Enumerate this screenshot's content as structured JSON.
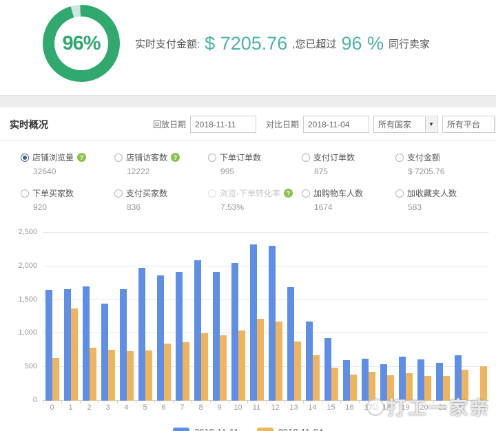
{
  "summary": {
    "donut_label": "96%",
    "donut_percent": 96,
    "prefix": "实时支付金额:",
    "amount": "$ 7205.76",
    "middle": ",您已超过",
    "percent": "96 %",
    "suffix": "同行卖家"
  },
  "overview": {
    "title": "实时概况"
  },
  "filters": {
    "replay_label": "回放日期",
    "replay_value": "2018-11-11",
    "compare_label": "对比日期",
    "compare_value": "2018-11-04",
    "country_selected": "所有国家",
    "platform_selected": "所有平台"
  },
  "metrics": {
    "items": [
      {
        "label": "店铺浏览量",
        "value": "32640",
        "selected": true,
        "help": true,
        "disabled": false
      },
      {
        "label": "店铺访客数",
        "value": "12222",
        "selected": false,
        "help": true,
        "disabled": false
      },
      {
        "label": "下单订单数",
        "value": "995",
        "selected": false,
        "help": false,
        "disabled": false
      },
      {
        "label": "支付订单数",
        "value": "875",
        "selected": false,
        "help": false,
        "disabled": false
      },
      {
        "label": "支付金额",
        "value": "$ 7205.76",
        "selected": false,
        "help": false,
        "disabled": false
      },
      {
        "label": "下单买家数",
        "value": "920",
        "selected": false,
        "help": false,
        "disabled": false
      },
      {
        "label": "支付买家数",
        "value": "836",
        "selected": false,
        "help": false,
        "disabled": false
      },
      {
        "label": "浏览-下单转化率",
        "value": "7.53%",
        "selected": false,
        "help": true,
        "disabled": true
      },
      {
        "label": "加购物车人数",
        "value": "1674",
        "selected": false,
        "help": false,
        "disabled": false
      },
      {
        "label": "加收藏夹人数",
        "value": "583",
        "selected": false,
        "help": false,
        "disabled": false
      }
    ]
  },
  "chart_data": {
    "type": "bar",
    "categories": [
      "0",
      "1",
      "2",
      "3",
      "4",
      "5",
      "6",
      "7",
      "8",
      "9",
      "10",
      "11",
      "12",
      "13",
      "14",
      "15",
      "16",
      "17",
      "18",
      "19",
      "20",
      "21",
      "22",
      "23"
    ],
    "series": [
      {
        "name": "2018-11-11",
        "color": "#5e8fe8",
        "values": [
          1650,
          1660,
          1700,
          1440,
          1660,
          1980,
          1860,
          1915,
          2090,
          1920,
          2050,
          2330,
          2310,
          1690,
          1180,
          930,
          600,
          625,
          545,
          655,
          615,
          560,
          680,
          null
        ]
      },
      {
        "name": "2018-11-04",
        "color": "#f0b55c",
        "values": [
          640,
          1370,
          790,
          755,
          735,
          745,
          855,
          875,
          1000,
          975,
          1050,
          1220,
          1180,
          885,
          675,
          490,
          390,
          435,
          375,
          410,
          370,
          370,
          465,
          515
        ]
      }
    ],
    "ylim": [
      0,
      2500
    ],
    "yticks": [
      {
        "value": 0,
        "label": "0"
      },
      {
        "value": 500,
        "label": "500"
      },
      {
        "value": 1000,
        "label": "1,000"
      },
      {
        "value": 1500,
        "label": "1,500"
      },
      {
        "value": 2000,
        "label": "2,000"
      },
      {
        "value": 2500,
        "label": "2,500"
      }
    ],
    "grid": true,
    "legend_position": "bottom",
    "title": "",
    "xlabel": "",
    "ylabel": ""
  },
  "watermark": {
    "text": "打工一家亲"
  },
  "colors": {
    "donut_main": "#2fa96e",
    "donut_rest": "#cbe7df",
    "teal_accent": "#4bb2ab",
    "help_green": "#8bc34a",
    "bar_blue": "#5e8fe8",
    "bar_orange": "#f0b55c"
  }
}
